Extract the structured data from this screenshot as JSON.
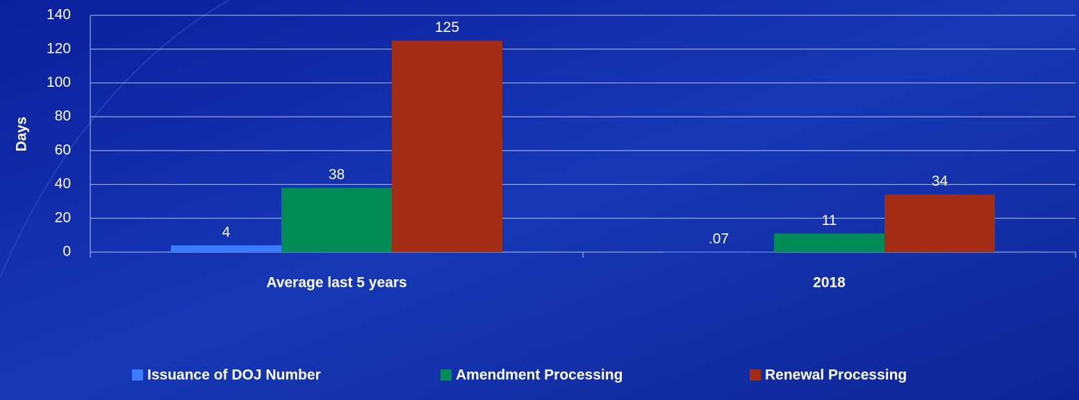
{
  "chart_data": {
    "type": "bar",
    "y_label": "Days",
    "categories": [
      "Average last 5 years",
      "2018"
    ],
    "series": [
      {
        "name": "Issuance of DOJ Number",
        "color": "#3a7cff",
        "values": [
          4,
          0.07
        ],
        "value_labels": [
          "4",
          ".07"
        ]
      },
      {
        "name": "Amendment Processing",
        "color": "#008c56",
        "values": [
          38,
          11
        ],
        "value_labels": [
          "38",
          "11"
        ]
      },
      {
        "name": "Renewal Processing",
        "color": "#a22d14",
        "values": [
          125,
          34
        ],
        "value_labels": [
          "125",
          "34"
        ]
      }
    ],
    "ylim": [
      0,
      140
    ],
    "yticks": [
      0,
      20,
      40,
      60,
      80,
      100,
      120,
      140
    ],
    "grid": true,
    "legend": "bottom"
  }
}
